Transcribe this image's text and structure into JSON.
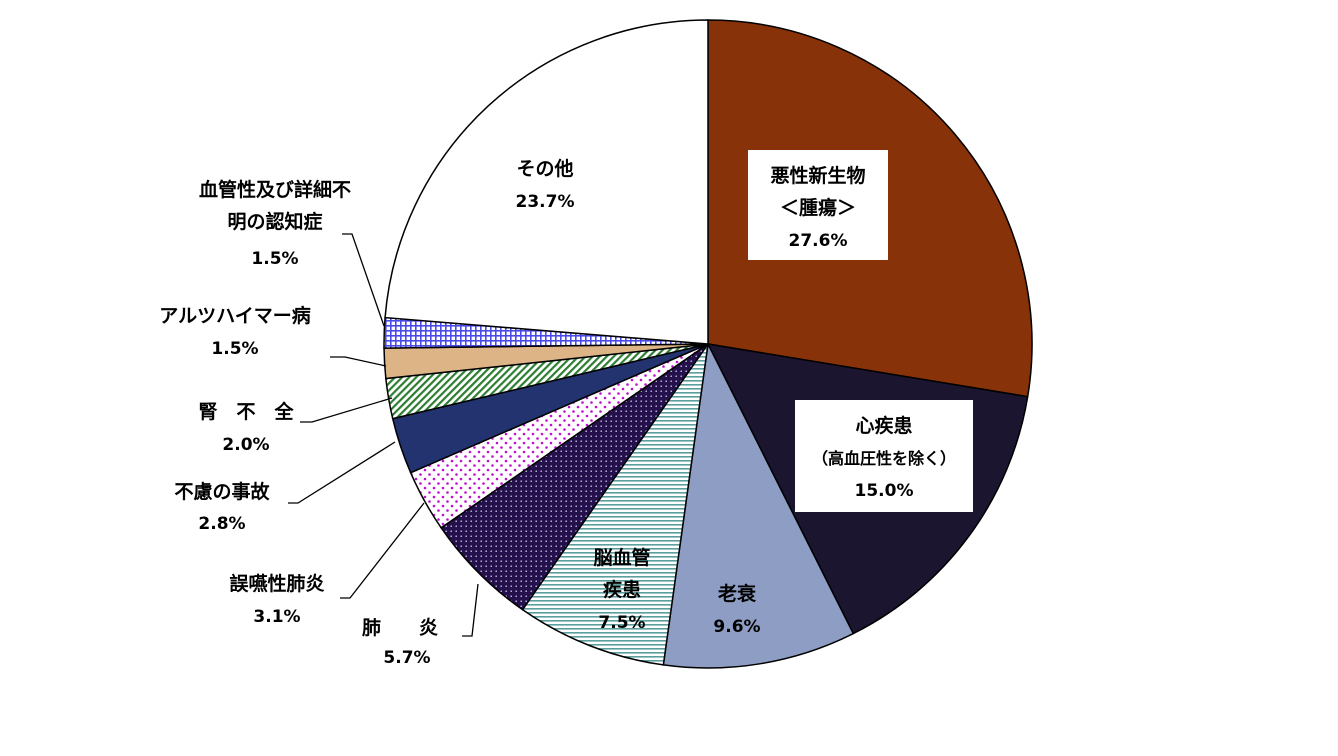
{
  "chart_data": {
    "type": "pie",
    "start": "12 o'clock",
    "direction": "clockwise",
    "slices": [
      {
        "lines": [
          "悪性新生物",
          "＜腫瘍＞"
        ],
        "value": 27.6,
        "value_label": "27.6%",
        "color": "#873209",
        "pattern": "solid",
        "label_style": "boxed"
      },
      {
        "lines": [
          "心疾患",
          "（高血圧性を除く）"
        ],
        "value": 15.0,
        "value_label": "15.0%",
        "color": "#1b1530",
        "pattern": "solid",
        "label_style": "boxed"
      },
      {
        "lines": [
          "老衰"
        ],
        "value": 9.6,
        "value_label": "9.6%",
        "color": "#8d9dc4",
        "pattern": "solid",
        "label_style": "inside"
      },
      {
        "lines": [
          "脳血管",
          "疾患"
        ],
        "value": 7.5,
        "value_label": "7.5%",
        "color": "#5a9e9e",
        "pattern": "hlines",
        "label_style": "inside"
      },
      {
        "lines": [
          "肺　　炎"
        ],
        "value": 5.7,
        "value_label": "5.7%",
        "color": "#24104a",
        "pattern": "dark-dots",
        "label_style": "outside"
      },
      {
        "lines": [
          "誤嚥性肺炎"
        ],
        "value": 3.1,
        "value_label": "3.1%",
        "color": "#c010d0",
        "pattern": "dots",
        "label_style": "outside"
      },
      {
        "lines": [
          "不慮の事故"
        ],
        "value": 2.8,
        "value_label": "2.8%",
        "color": "#22336f",
        "pattern": "solid",
        "label_style": "outside"
      },
      {
        "lines": [
          "腎　不　全"
        ],
        "value": 2.0,
        "value_label": "2.0%",
        "color": "#2e7d32",
        "pattern": "diagonal",
        "label_style": "outside"
      },
      {
        "lines": [
          "アルツハイマー病"
        ],
        "value": 1.5,
        "value_label": "1.5%",
        "color": "#dcb486",
        "pattern": "solid",
        "label_style": "outside"
      },
      {
        "lines": [
          "血管性及び詳細不",
          "明の認知症"
        ],
        "value": 1.5,
        "value_label": "1.5%",
        "color": "#4a4ae6",
        "pattern": "grid",
        "label_style": "outside"
      },
      {
        "lines": [
          "その他"
        ],
        "value": 23.7,
        "value_label": "23.7%",
        "color": "#ffffff",
        "pattern": "solid",
        "label_style": "inside"
      }
    ]
  }
}
